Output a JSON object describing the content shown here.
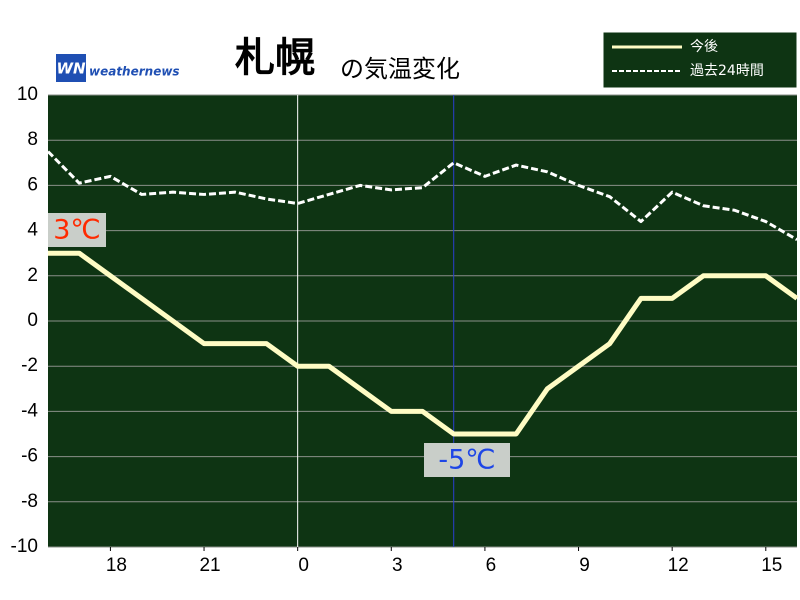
{
  "chart_data": {
    "type": "line",
    "title": "札幌",
    "title_suffix": "の気温変化",
    "logo": {
      "mark": "WN",
      "text": "weathernews"
    },
    "x": [
      16,
      17,
      18,
      19,
      20,
      21,
      22,
      23,
      24,
      25,
      26,
      27,
      28,
      29,
      30,
      31,
      32,
      33,
      34,
      35,
      36,
      37,
      38,
      39,
      40
    ],
    "xlim": [
      16,
      40
    ],
    "xticks": [
      18,
      21,
      {
        "value": 24,
        "label": "0"
      },
      {
        "value": 27,
        "label": "3"
      },
      {
        "value": 30,
        "label": "6"
      },
      {
        "value": 33,
        "label": "9"
      },
      {
        "value": 36,
        "label": "12"
      },
      {
        "value": 39,
        "label": "15"
      }
    ],
    "ylim": [
      -10,
      10
    ],
    "yticks": [
      -10,
      -8,
      -6,
      -4,
      -2,
      0,
      2,
      4,
      6,
      8,
      10
    ],
    "grid": true,
    "vlines": [
      {
        "x": 24,
        "color": "#ffffff"
      },
      {
        "x": 29,
        "color": "#2a3fd0"
      }
    ],
    "series": [
      {
        "name": "今後",
        "color": "#fffcc4",
        "dashed": false,
        "values": [
          3,
          3,
          2,
          1,
          0,
          -1,
          -1,
          -1,
          -2,
          -2,
          -3,
          -4,
          -4,
          -5,
          -5,
          -5,
          -3,
          -2,
          -1,
          1,
          1,
          2,
          2,
          2,
          1
        ]
      },
      {
        "name": "過去24時間",
        "color": "#ffffff",
        "dashed": true,
        "values": [
          7.5,
          6.1,
          6.4,
          5.6,
          5.7,
          5.6,
          5.7,
          5.4,
          5.2,
          5.6,
          6.0,
          5.8,
          5.9,
          7.0,
          6.4,
          6.9,
          6.6,
          6.0,
          5.5,
          4.4,
          5.7,
          5.1,
          4.9,
          4.4,
          3.6
        ]
      }
    ],
    "annotations": [
      {
        "text": "3℃",
        "color": "#ff2a00"
      },
      {
        "text": "-5℃",
        "color": "#1e46e6"
      }
    ],
    "plot_color": "#0e3413"
  }
}
